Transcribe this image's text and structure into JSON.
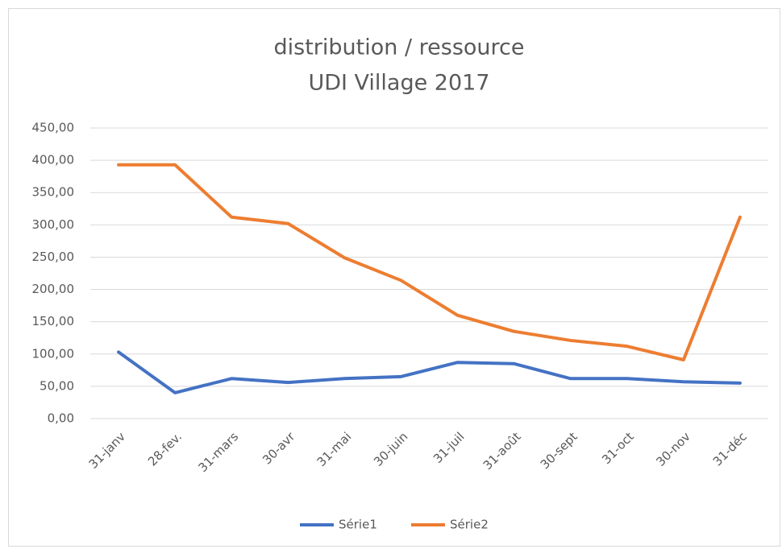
{
  "chart_data": {
    "type": "line",
    "title": "distribution / ressource",
    "subtitle": "UDI Village 2017",
    "categories": [
      "31-janv",
      "28-fev.",
      "31-mars",
      "30-avr",
      "31-mai",
      "30-juin",
      "31-juil",
      "31-août",
      "30-sept",
      "31-oct",
      "30-nov",
      "31-déc"
    ],
    "series": [
      {
        "name": "Série1",
        "color": "#4472c4",
        "values": [
          103,
          40,
          62,
          56,
          62,
          65,
          87,
          85,
          62,
          62,
          57,
          55
        ]
      },
      {
        "name": "Série2",
        "color": "#ed7d31",
        "values": [
          393,
          393,
          312,
          302,
          249,
          214,
          160,
          135,
          121,
          112,
          91,
          312
        ]
      }
    ],
    "ylim": [
      0,
      450
    ],
    "yticks": [
      {
        "value": 0,
        "label": "0,00"
      },
      {
        "value": 50,
        "label": "50,00"
      },
      {
        "value": 100,
        "label": "100,00"
      },
      {
        "value": 150,
        "label": "150,00"
      },
      {
        "value": 200,
        "label": "200,00"
      },
      {
        "value": 250,
        "label": "250,00"
      },
      {
        "value": 300,
        "label": "300,00"
      },
      {
        "value": 350,
        "label": "350,00"
      },
      {
        "value": 400,
        "label": "400,00"
      },
      {
        "value": 450,
        "label": "450,00"
      }
    ],
    "grid": true,
    "legend": "bottom"
  }
}
